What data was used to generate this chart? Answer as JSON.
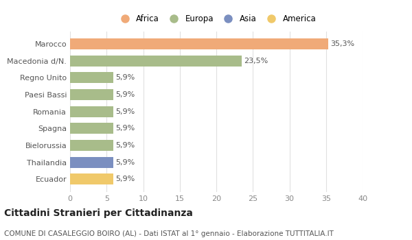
{
  "categories": [
    "Ecuador",
    "Thailandia",
    "Bielorussia",
    "Spagna",
    "Romania",
    "Paesi Bassi",
    "Regno Unito",
    "Macedonia d/N.",
    "Marocco"
  ],
  "values": [
    5.9,
    5.9,
    5.9,
    5.9,
    5.9,
    5.9,
    5.9,
    23.5,
    35.3
  ],
  "labels": [
    "5,9%",
    "5,9%",
    "5,9%",
    "5,9%",
    "5,9%",
    "5,9%",
    "5,9%",
    "23,5%",
    "35,3%"
  ],
  "colors": [
    "#f0c96a",
    "#7b8fc0",
    "#a8bc8a",
    "#a8bc8a",
    "#a8bc8a",
    "#a8bc8a",
    "#a8bc8a",
    "#a8bc8a",
    "#f0aa78"
  ],
  "legend": [
    {
      "label": "Africa",
      "color": "#f0aa78"
    },
    {
      "label": "Europa",
      "color": "#a8bc8a"
    },
    {
      "label": "Asia",
      "color": "#7b8fc0"
    },
    {
      "label": "America",
      "color": "#f0c96a"
    }
  ],
  "xlim": [
    0,
    40
  ],
  "xticks": [
    0,
    5,
    10,
    15,
    20,
    25,
    30,
    35,
    40
  ],
  "title": "Cittadini Stranieri per Cittadinanza",
  "subtitle": "COMUNE DI CASALEGGIO BOIRO (AL) - Dati ISTAT al 1° gennaio - Elaborazione TUTTITALIA.IT",
  "background_color": "#ffffff",
  "grid_color": "#e0e0e0",
  "bar_height": 0.65,
  "label_fontsize": 8,
  "tick_fontsize": 8,
  "legend_fontsize": 8.5,
  "title_fontsize": 10,
  "subtitle_fontsize": 7.5
}
